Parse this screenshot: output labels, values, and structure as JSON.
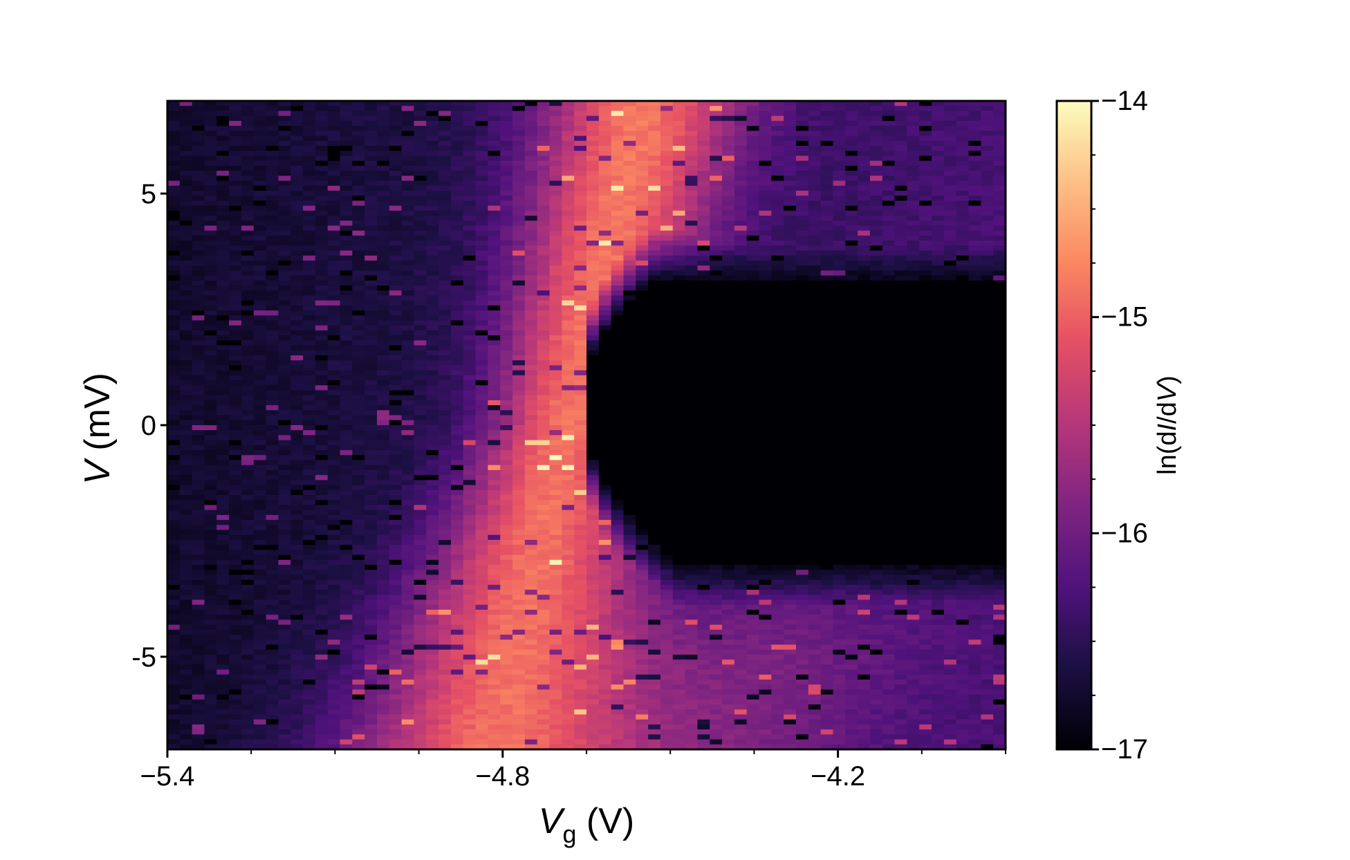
{
  "chart_data": {
    "type": "heatmap",
    "title": "",
    "xlabel": {
      "symbol": "V",
      "subscript": "g",
      "unit": " (V)"
    },
    "ylabel": {
      "symbol": "V",
      "unit": " (mV)"
    },
    "colorbar": {
      "label_prefix": "ln(d",
      "label_italic_1": "I",
      "label_middle": "/d",
      "label_italic_2": "V",
      "label_suffix": ")",
      "range": [
        -17,
        -14
      ],
      "ticks": [
        -14,
        -15,
        -16,
        -17
      ],
      "tick_labels": [
        "−14",
        "−15",
        "−16",
        "−17"
      ],
      "colormap": "magma"
    },
    "x_range": [
      -5.4,
      -3.9
    ],
    "y_range": [
      -7,
      7
    ],
    "x_ticks": [
      -5.4,
      -4.8,
      -4.2
    ],
    "x_tick_labels": [
      "−5.4",
      "−4.8",
      "−4.2"
    ],
    "y_ticks": [
      5,
      0,
      -5
    ],
    "y_tick_labels": [
      "5",
      "0",
      "-5"
    ],
    "features": {
      "bright_band": "conductance maximum crossing from Vg ≈ −4.82 V at V = −7 mV to Vg ≈ −4.55 V at V = +7 mV, widening toward negative bias",
      "gap_region": "dark low-conductance lobe for Vg > −4.65 V, vertex near V ≈ 0.5 mV, growing to ≈ −3 mV ... +3 mV at Vg = −3.9 V"
    }
  }
}
